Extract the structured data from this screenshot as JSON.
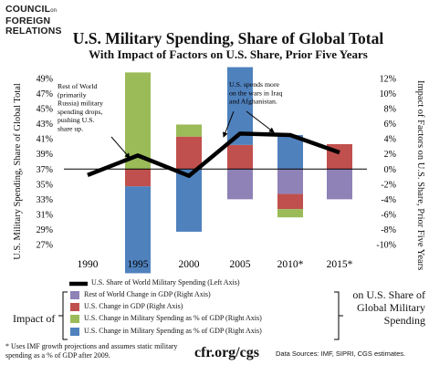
{
  "logo": {
    "line1": "COUNCIL",
    "line1_small": "on",
    "line2": "FOREIGN",
    "line3": "RELATIONS"
  },
  "title": "U.S. Military Spending, Share of Global Total",
  "subtitle": "With Impact of Factors on U.S. Share, Prior Five Years",
  "footnote": "* Uses IMF growth projections and assumes static military spending as a % of GDP after 2009.",
  "url": "cfr.org/cgs",
  "sources": "Data Sources: IMF, SIPRI, CGS estimates.",
  "legend_main": "U.S. Share of World Military Spending (Left Axis)",
  "impact_label": "Impact of",
  "on_share_label": "on U.S. Share of Global Military Spending",
  "colors": {
    "line": "#000000",
    "rest_gdp": "#8e82b7",
    "us_gdp": "#c0504d",
    "rest_mil": "#9bbb59",
    "us_mil": "#4f81bd"
  },
  "chart_data": {
    "type": "bar+line",
    "title": "U.S. Military Spending, Share of Global Total",
    "subtitle": "With Impact of Factors on U.S. Share, Prior Five Years",
    "categories": [
      "1990",
      "1995",
      "2000",
      "2005",
      "2010*",
      "2015*"
    ],
    "ylabel_left": "U.S. Military Spending, Share of Global Total",
    "ylabel_right": "Impact of Factors on U.S. Share, Prior Five Years",
    "ylim_left": [
      27,
      49
    ],
    "yticks_left": [
      "49%",
      "47%",
      "45%",
      "43%",
      "41%",
      "39%",
      "37%",
      "35%",
      "33%",
      "31%",
      "29%",
      "27%"
    ],
    "ylim_right": [
      -10,
      12
    ],
    "yticks_right": [
      "12%",
      "10%",
      "8%",
      "6%",
      "4%",
      "2%",
      "0%",
      "-2%",
      "-4%",
      "-6%",
      "-8%",
      "-10%"
    ],
    "grid": false,
    "line_series": {
      "name": "U.S. Share of World Military Spending (Left Axis)",
      "values": [
        36.2,
        38.8,
        36.1,
        41.7,
        41.5,
        39.2
      ]
    },
    "bar_series": [
      {
        "name": "Rest of World Change in GDP (Right Axis)",
        "color": "#8e82b7",
        "values": [
          null,
          0,
          0,
          -4.0,
          -3.3,
          -4.0
        ]
      },
      {
        "name": "U.S. Change in GDP (Right Axis)",
        "color": "#c0504d",
        "values": [
          null,
          -2.3,
          4.3,
          3.2,
          -2.0,
          3.3
        ]
      },
      {
        "name": "U.S. Change in Military Spending as % of GDP (Right Axis)",
        "color": "#9bbb59",
        "values": [
          null,
          12.8,
          1.6,
          0,
          -1.1,
          0
        ]
      },
      {
        "name": "U.S. Change in Military Spending as % of GDP (Right Axis)",
        "color": "#4f81bd",
        "values": [
          null,
          -11.5,
          -8.3,
          10.3,
          4.5,
          0
        ]
      }
    ],
    "legend": [
      "U.S. Share of World Military Spending (Left Axis)",
      "Rest of World Change in GDP (Right Axis)",
      "U.S. Change in GDP (Right Axis)",
      "U.S. Change in Military Spending as % of GDP (Right Axis)",
      "U.S. Change in Military Spending as % of GDP (Right Axis)"
    ],
    "legend_placement": "bottom",
    "annotations": [
      "Rest of World (primarily Russia) military spending drops, pushing U.S. share up.",
      "U.S. spends more on the wars in Iraq and Afghanistan."
    ]
  }
}
